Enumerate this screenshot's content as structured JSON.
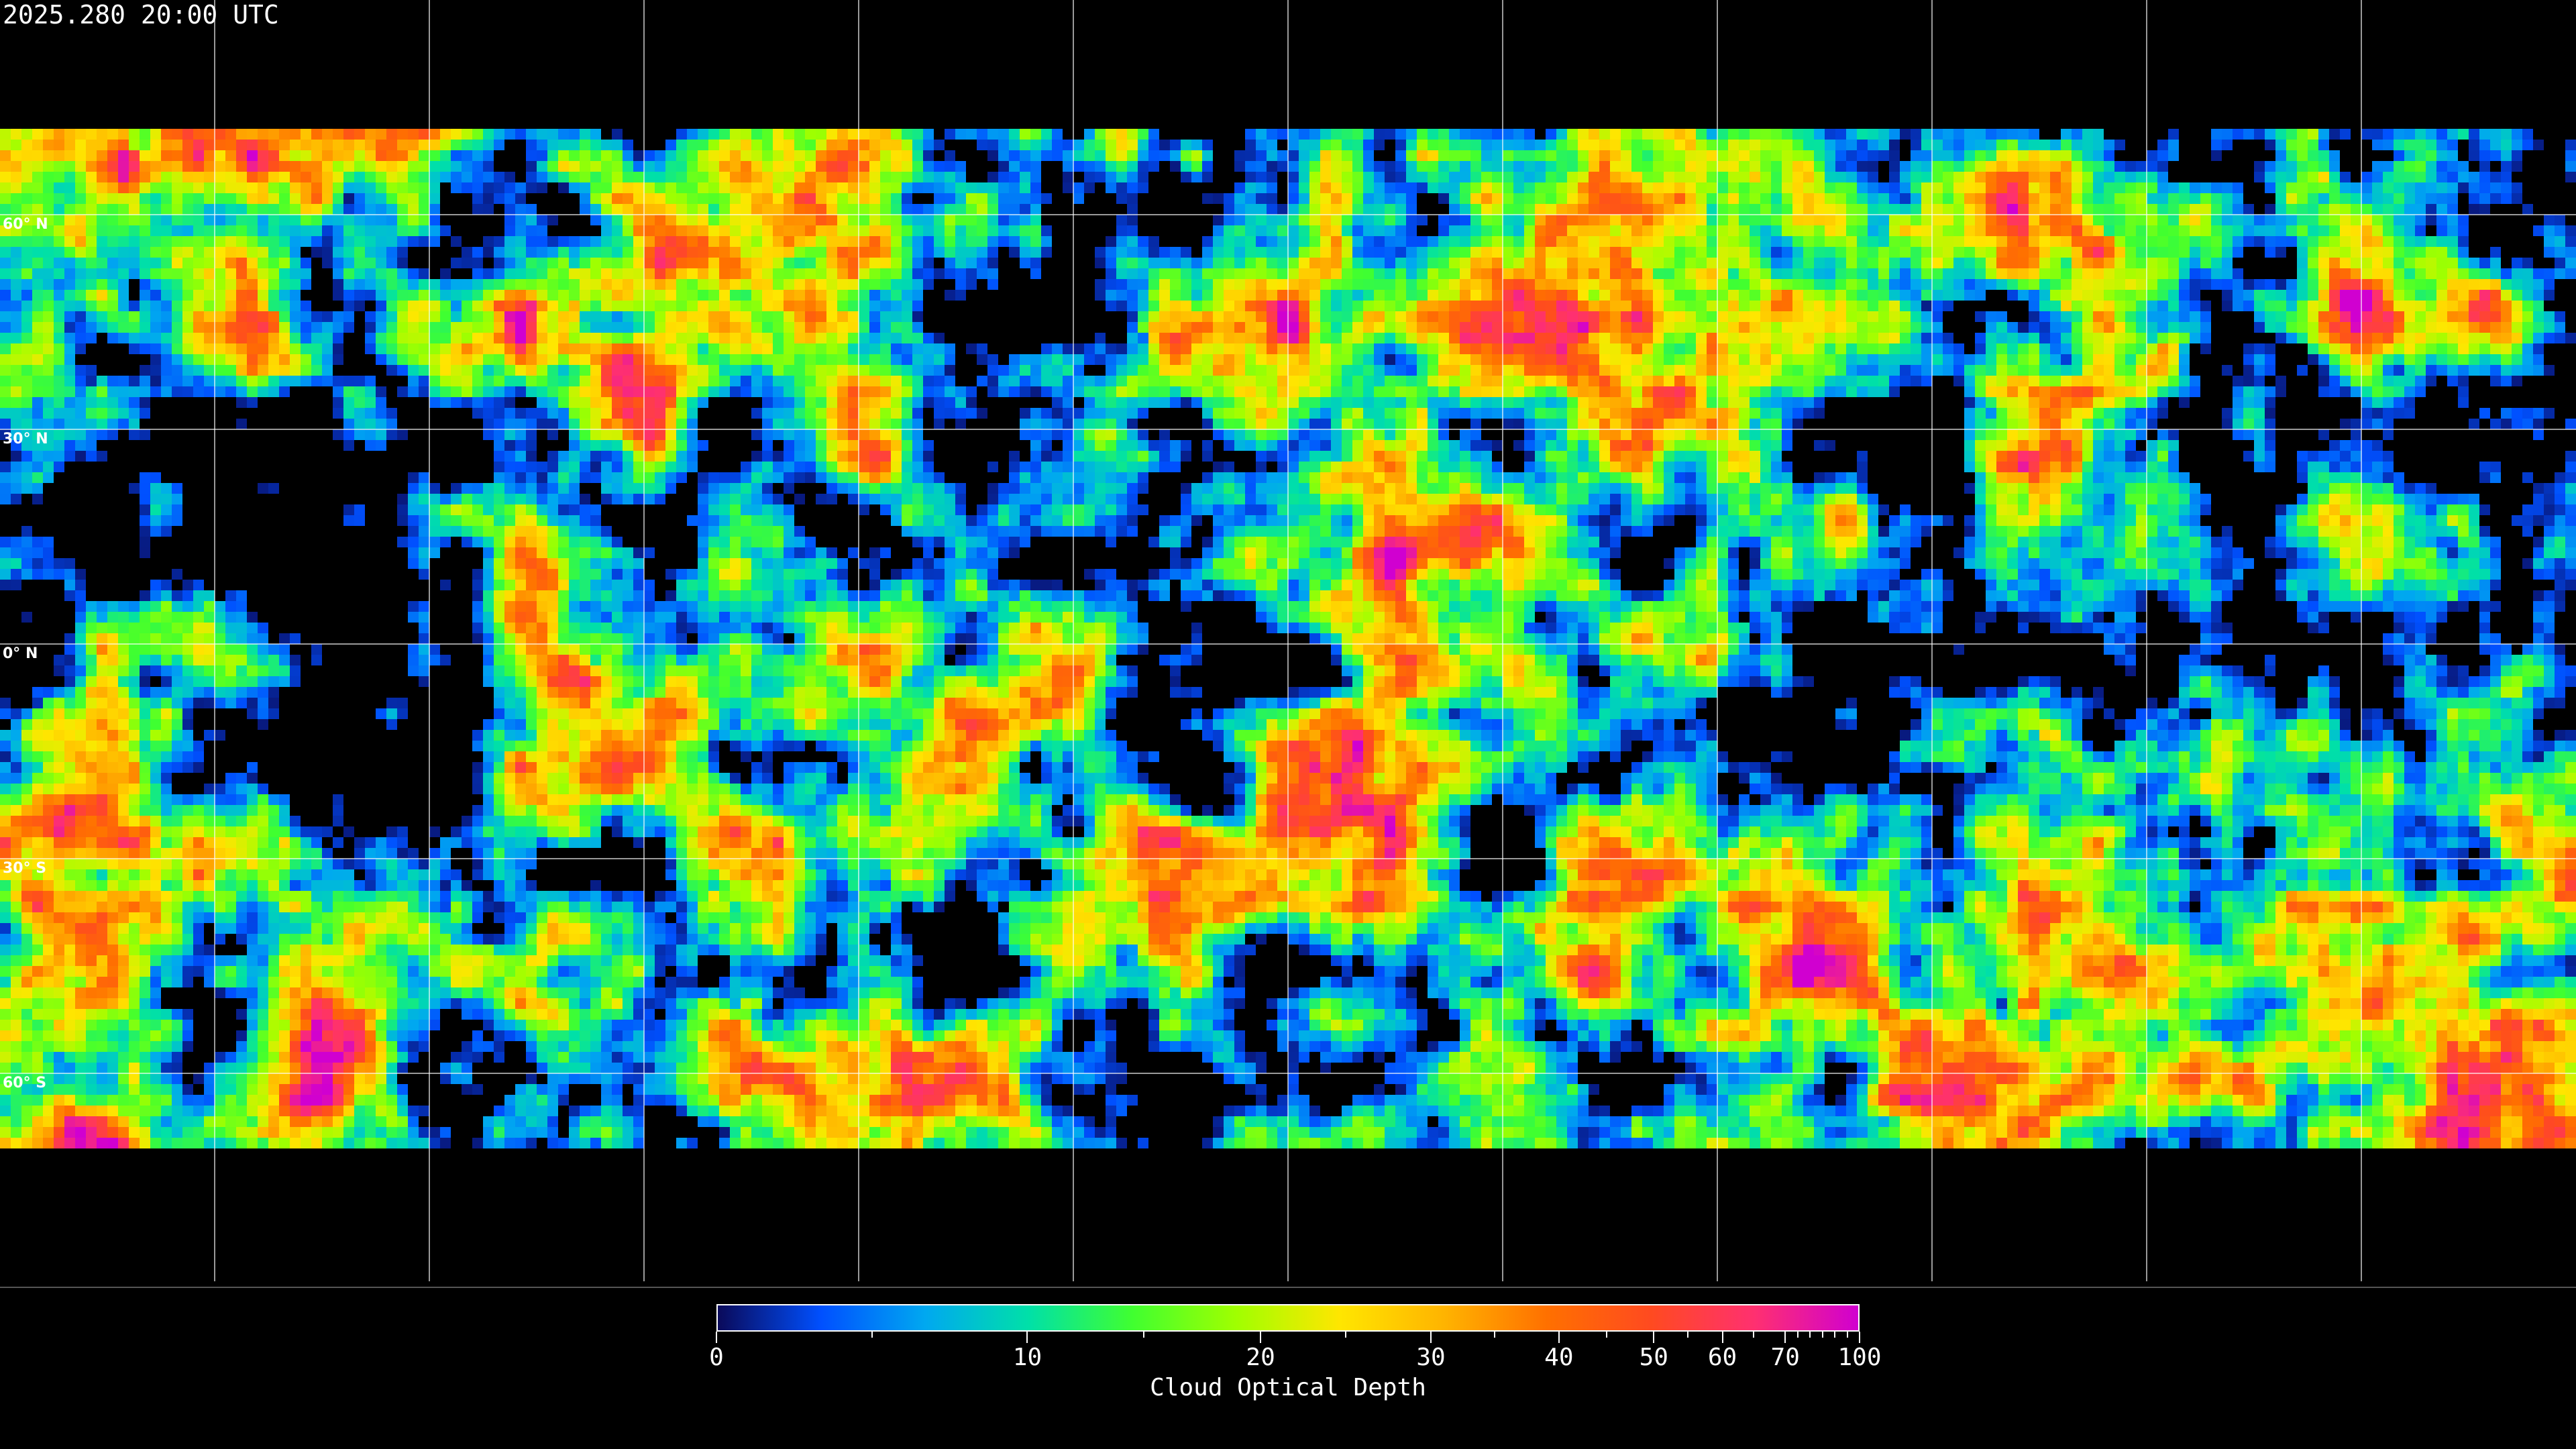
{
  "timestamp": "2025.280 20:00 UTC",
  "map": {
    "projection": "equirectangular",
    "grid_spacing_deg": 30,
    "latitude_labels": [
      "60° N",
      "30° N",
      "0° N",
      "30° S",
      "60° S"
    ],
    "latitude_values": [
      60,
      30,
      0,
      -30,
      -60
    ],
    "coastline_color": "#ffffff",
    "grid_color": "#ffffff",
    "no_data_color": "#000000"
  },
  "colorbar": {
    "title": "Cloud Optical Depth",
    "min": 0,
    "max": 100,
    "tick_labels": [
      "0",
      "10",
      "20",
      "30",
      "40",
      "50",
      "60",
      "70",
      "100"
    ],
    "tick_values": [
      0,
      10,
      20,
      30,
      40,
      50,
      60,
      70,
      100
    ],
    "minor_tick_values": [
      5,
      15,
      25,
      35,
      45,
      55,
      65,
      75,
      80,
      85,
      90,
      95
    ],
    "colors": [
      "#0a0a5a",
      "#0050ff",
      "#00a8f0",
      "#00e0a8",
      "#40ff30",
      "#a0ff00",
      "#ffe600",
      "#ffb400",
      "#ff7000",
      "#ff4a20",
      "#ff3070",
      "#d000d0"
    ]
  }
}
